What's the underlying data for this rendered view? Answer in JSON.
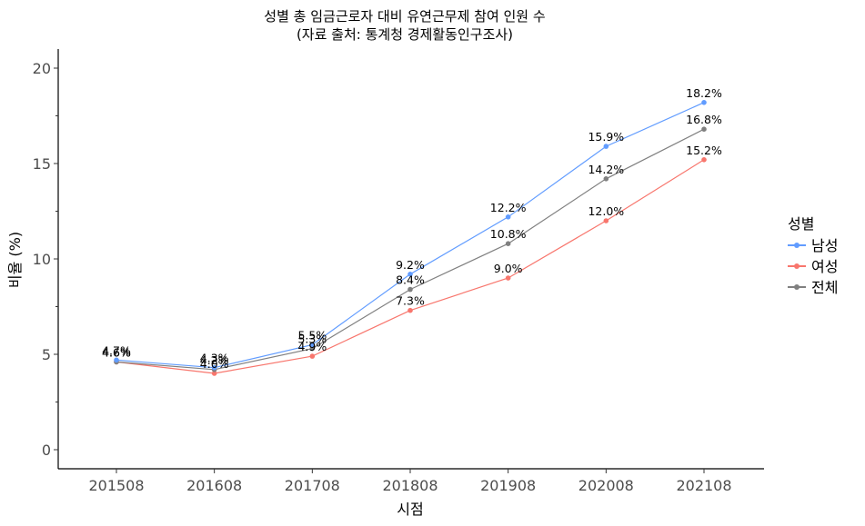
{
  "chart_data": {
    "type": "line",
    "title": "성별 총 임금근로자 대비 유연근무제 참여 인원 수",
    "subtitle": "(자료 출처: 통계청 경제활동인구조사)",
    "xlabel": "시점",
    "ylabel": "비율 (%)",
    "categories": [
      "201508",
      "201608",
      "201708",
      "201808",
      "201908",
      "202008",
      "202108"
    ],
    "ylim": [
      -1,
      21
    ],
    "yticks": [
      0,
      5,
      10,
      15,
      20
    ],
    "legend_title": "성별",
    "legend_position": "right",
    "grid": false,
    "series": [
      {
        "name": "남성",
        "color": "#619CFF",
        "values": [
          4.7,
          4.3,
          5.5,
          9.2,
          12.2,
          15.9,
          18.2
        ],
        "labels": [
          "4.7%",
          "4.3%",
          "5.5%",
          "9.2%",
          "12.2%",
          "15.9%",
          "18.2%"
        ]
      },
      {
        "name": "여성",
        "color": "#F8766D",
        "values": [
          4.6,
          4.0,
          4.9,
          7.3,
          9.0,
          12.0,
          15.2
        ],
        "labels": [
          "4.6%",
          "4.0%",
          "4.9%",
          "7.3%",
          "9.0%",
          "12.0%",
          "15.2%"
        ]
      },
      {
        "name": "전체",
        "color": "#808080",
        "values": [
          4.6,
          4.2,
          5.3,
          8.4,
          10.8,
          14.2,
          16.8
        ],
        "labels": [
          "4.6%",
          "4.2%",
          "5.3%",
          "8.4%",
          "10.8%",
          "14.2%",
          "16.8%"
        ]
      }
    ]
  }
}
